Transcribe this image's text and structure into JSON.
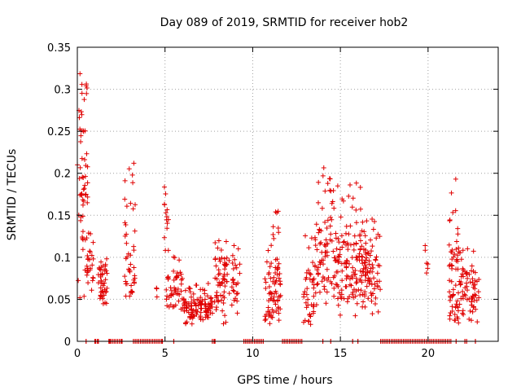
{
  "chart_data": {
    "type": "scatter",
    "title": "Day 089 of 2019, SRMTID for receiver hob2",
    "xlabel": "GPS time / hours",
    "ylabel": "SRMTID / TECUs",
    "xlim": [
      0,
      24
    ],
    "ylim": [
      0,
      0.35
    ],
    "xticks": [
      0,
      5,
      10,
      15,
      20
    ],
    "yticks": [
      0,
      0.05,
      0.1,
      0.15,
      0.2,
      0.25,
      0.3,
      0.35
    ],
    "grid": true,
    "marker": "plus",
    "color": "#e00000",
    "series": [
      {
        "name": "SRMTID",
        "clusters": [
          {
            "x": [
              0.0,
              0.6
            ],
            "y": [
              0.04,
              0.32
            ],
            "n": 60,
            "dense": 0.19
          },
          {
            "x": [
              0.5,
              1.0
            ],
            "y": [
              0.06,
              0.13
            ],
            "n": 25,
            "dense": 0.09
          },
          {
            "x": [
              1.2,
              1.7
            ],
            "y": [
              0.03,
              0.11
            ],
            "n": 45,
            "dense": 0.07
          },
          {
            "x": [
              2.7,
              3.3
            ],
            "y": [
              0.05,
              0.22
            ],
            "n": 45,
            "dense": 0.1
          },
          {
            "x": [
              4.4,
              4.6
            ],
            "y": [
              0.05,
              0.07
            ],
            "n": 4,
            "dense": 0.06
          },
          {
            "x": [
              4.9,
              5.2
            ],
            "y": [
              0.12,
              0.19
            ],
            "n": 12,
            "dense": 0.15
          },
          {
            "x": [
              5.0,
              6.0
            ],
            "y": [
              0.03,
              0.11
            ],
            "n": 50,
            "dense": 0.06
          },
          {
            "x": [
              6.0,
              7.7
            ],
            "y": [
              0.02,
              0.07
            ],
            "n": 110,
            "dense": 0.04
          },
          {
            "x": [
              7.8,
              9.3
            ],
            "y": [
              0.02,
              0.14
            ],
            "n": 90,
            "dense": 0.07
          },
          {
            "x": [
              10.7,
              11.6
            ],
            "y": [
              0.02,
              0.16
            ],
            "n": 80,
            "dense": 0.06
          },
          {
            "x": [
              12.9,
              13.5
            ],
            "y": [
              0.02,
              0.13
            ],
            "n": 40,
            "dense": 0.05
          },
          {
            "x": [
              13.5,
              14.5
            ],
            "y": [
              0.04,
              0.22
            ],
            "n": 70,
            "dense": 0.1
          },
          {
            "x": [
              14.5,
              16.2
            ],
            "y": [
              0.03,
              0.19
            ],
            "n": 130,
            "dense": 0.09
          },
          {
            "x": [
              16.2,
              17.3
            ],
            "y": [
              0.03,
              0.15
            ],
            "n": 90,
            "dense": 0.08
          },
          {
            "x": [
              19.8,
              20.0
            ],
            "y": [
              0.07,
              0.12
            ],
            "n": 6,
            "dense": 0.1
          },
          {
            "x": [
              21.2,
              21.8
            ],
            "y": [
              0.02,
              0.2
            ],
            "n": 60,
            "dense": 0.07
          },
          {
            "x": [
              21.8,
              22.9
            ],
            "y": [
              0.02,
              0.12
            ],
            "n": 70,
            "dense": 0.06
          }
        ]
      }
    ],
    "zero_markers_x": [
      0.5,
      1.0,
      1.05,
      1.15,
      1.2,
      1.8,
      1.85,
      1.9,
      2.0,
      2.1,
      2.2,
      2.3,
      2.4,
      2.5,
      2.55,
      3.2,
      3.3,
      3.4,
      3.5,
      3.6,
      3.7,
      3.8,
      3.9,
      4.0,
      4.1,
      4.2,
      4.3,
      4.4,
      4.5,
      4.6,
      4.7,
      4.8,
      4.85,
      5.5,
      7.7,
      7.8,
      7.85,
      9.5,
      9.6,
      9.7,
      9.8,
      9.9,
      10.0,
      10.1,
      10.2,
      10.3,
      10.4,
      10.5,
      10.6,
      11.7,
      11.8,
      11.9,
      12.0,
      12.1,
      12.2,
      12.3,
      12.4,
      12.5,
      12.6,
      12.7,
      12.8,
      14.0,
      14.45,
      15.7,
      16.0,
      17.3,
      17.4,
      17.5,
      17.6,
      17.7,
      17.8,
      17.9,
      18.0,
      18.1,
      18.2,
      18.3,
      18.4,
      18.5,
      18.6,
      18.7,
      18.8,
      18.9,
      19.0,
      19.1,
      19.2,
      19.3,
      19.4,
      19.5,
      19.6,
      19.7,
      19.8,
      19.9,
      20.0,
      20.1,
      20.2,
      20.3,
      20.4,
      20.5,
      20.6,
      20.7,
      20.8,
      20.9,
      21.0,
      21.1,
      21.2,
      21.3,
      21.6,
      22.1,
      22.2,
      22.7
    ]
  }
}
